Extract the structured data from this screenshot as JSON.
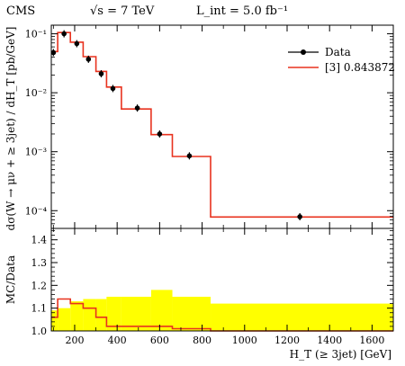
{
  "header": {
    "experiment": "CMS",
    "energy": "√s = 7 TeV",
    "luminosity": "L_int = 5.0 fb⁻¹"
  },
  "chart_data": [
    {
      "type": "line",
      "panel": "main",
      "ylabel": "dσ(W → μν + ≥ 3jet) / dH_T [pb/GeV]",
      "yscale": "log",
      "ylim": [
        5e-05,
        0.14
      ],
      "xlim": [
        90,
        1700
      ],
      "yticks": [
        "10⁻¹",
        "10⁻²",
        "10⁻³",
        "10⁻⁴"
      ],
      "legend_position": "top-right",
      "series": [
        {
          "name": "Data",
          "style": "points-with-errors",
          "color": "#000000",
          "points": [
            {
              "x": 100,
              "y": 0.048
            },
            {
              "x": 150,
              "y": 0.1
            },
            {
              "x": 210,
              "y": 0.068
            },
            {
              "x": 265,
              "y": 0.037
            },
            {
              "x": 325,
              "y": 0.021
            },
            {
              "x": 380,
              "y": 0.0118
            },
            {
              "x": 495,
              "y": 0.0055
            },
            {
              "x": 600,
              "y": 0.002
            },
            {
              "x": 740,
              "y": 0.00085
            },
            {
              "x": 1260,
              "y": 7.9e-05
            }
          ]
        },
        {
          "name": "[3] 0.843872",
          "style": "step",
          "color": "#e8321e",
          "edges": [
            90,
            120,
            180,
            240,
            300,
            350,
            420,
            560,
            660,
            840,
            1700
          ],
          "values": [
            0.05,
            0.105,
            0.072,
            0.041,
            0.023,
            0.0125,
            0.0053,
            0.00195,
            0.00083,
            7.8e-05
          ]
        }
      ]
    },
    {
      "type": "area",
      "panel": "ratio",
      "xlabel": "H_T (≥ 3jet) [GeV]",
      "ylabel": "MC/Data",
      "ylim": [
        1.0,
        1.45
      ],
      "yticks": [
        "1.0",
        "1.1",
        "1.2",
        "1.3",
        "1.4"
      ],
      "xticks": [
        "200",
        "400",
        "600",
        "800",
        "1000",
        "1200",
        "1400",
        "1600"
      ],
      "band": {
        "color": "#ffff00",
        "edges": [
          90,
          120,
          180,
          240,
          300,
          350,
          420,
          560,
          660,
          840,
          1700
        ],
        "upper": [
          1.09,
          1.1,
          1.13,
          1.14,
          1.14,
          1.15,
          1.15,
          1.18,
          1.15,
          1.12
        ],
        "lower": [
          1.0,
          1.0,
          1.0,
          1.0,
          1.0,
          1.0,
          1.0,
          1.0,
          1.0,
          1.0
        ]
      },
      "series": [
        {
          "name": "[3] 0.843872",
          "color": "#e8321e",
          "edges": [
            90,
            120,
            180,
            240,
            300,
            350,
            420,
            560,
            660,
            840,
            1700
          ],
          "values": [
            1.06,
            1.14,
            1.12,
            1.1,
            1.06,
            1.02,
            1.02,
            1.02,
            1.01,
            1.0
          ]
        }
      ]
    }
  ]
}
